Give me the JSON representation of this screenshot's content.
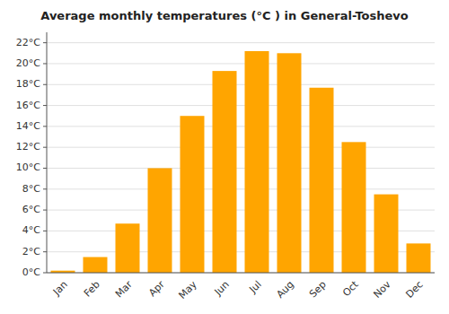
{
  "chart_data": {
    "type": "bar",
    "title": "Average monthly temperatures (°C ) in General-Toshevo",
    "categories": [
      "Jan",
      "Feb",
      "Mar",
      "Apr",
      "May",
      "Jun",
      "Jul",
      "Aug",
      "Sep",
      "Oct",
      "Nov",
      "Dec"
    ],
    "values": [
      0.2,
      1.5,
      4.7,
      10.0,
      15.0,
      19.3,
      21.2,
      21.0,
      17.7,
      12.5,
      7.5,
      2.8
    ],
    "color": "#FFA500",
    "ylim": [
      0,
      23
    ],
    "yticks": [
      {
        "value": 0,
        "label": "0°C"
      },
      {
        "value": 2,
        "label": "2°C"
      },
      {
        "value": 4,
        "label": "4°C"
      },
      {
        "value": 6,
        "label": "6°C"
      },
      {
        "value": 8,
        "label": "8°C"
      },
      {
        "value": 10,
        "label": "10°C"
      },
      {
        "value": 12,
        "label": "12°C"
      },
      {
        "value": 14,
        "label": "14°C"
      },
      {
        "value": 16,
        "label": "16°C"
      },
      {
        "value": 18,
        "label": "18°C"
      },
      {
        "value": 20,
        "label": "20°C"
      },
      {
        "value": 22,
        "label": "22°C"
      }
    ],
    "grid": true
  }
}
